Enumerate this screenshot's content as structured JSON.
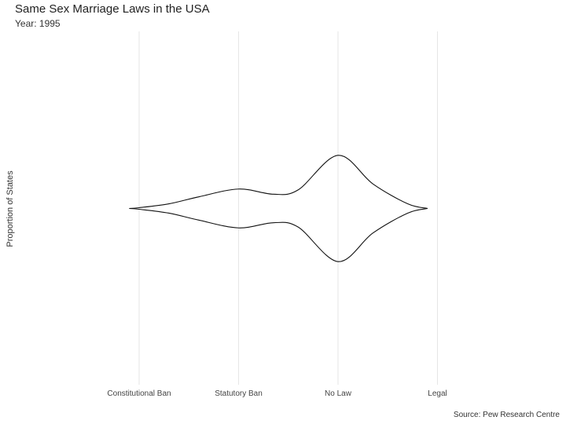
{
  "chart_data": {
    "type": "violin",
    "title": "Same Sex Marriage Laws in the USA",
    "subtitle": "Year: 1995",
    "xlabel": "",
    "ylabel": "Proportion of States",
    "caption": "Source: Pew Research Centre",
    "categories": [
      "Constitutional Ban",
      "Statutory Ban",
      "No Law",
      "Legal"
    ],
    "density": {
      "x": [
        -0.1,
        0.0,
        0.3,
        0.6,
        1.0,
        1.35,
        1.6,
        2.0,
        2.35,
        2.7,
        2.9
      ],
      "half_width": [
        0.0,
        0.03,
        0.18,
        0.45,
        0.75,
        0.55,
        0.72,
        2.05,
        0.95,
        0.18,
        0.0
      ]
    },
    "y_range": [
      -7,
      7
    ],
    "grid": "vertical-major"
  }
}
